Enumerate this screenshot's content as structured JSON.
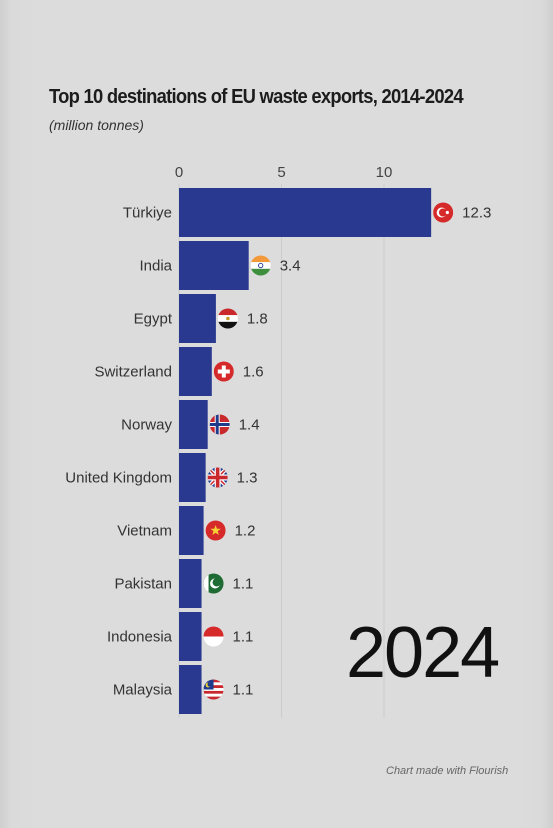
{
  "chart_data": {
    "type": "bar",
    "orientation": "horizontal",
    "title": "Top 10 destinations of EU waste exports, 2014-2024",
    "subtitle": "(million tonnes)",
    "xlim": [
      0,
      15
    ],
    "xticks": [
      0,
      5,
      10
    ],
    "xaxis_position": "top",
    "categories": [
      "Türkiye",
      "India",
      "Egypt",
      "Switzerland",
      "Norway",
      "United Kingdom",
      "Vietnam",
      "Pakistan",
      "Indonesia",
      "Malaysia"
    ],
    "values": [
      12.3,
      3.4,
      1.8,
      1.6,
      1.4,
      1.3,
      1.2,
      1.1,
      1.1,
      1.1
    ],
    "flags": [
      "turkey-flag-icon",
      "india-flag-icon",
      "egypt-flag-icon",
      "switzerland-flag-icon",
      "norway-flag-icon",
      "uk-flag-icon",
      "vietnam-flag-icon",
      "pakistan-flag-icon",
      "indonesia-flag-icon",
      "malaysia-flag-icon"
    ],
    "bar_color": "#2a3990",
    "grid": true,
    "legend": "none"
  },
  "year_label": "2024",
  "credit": "Chart made with Flourish"
}
